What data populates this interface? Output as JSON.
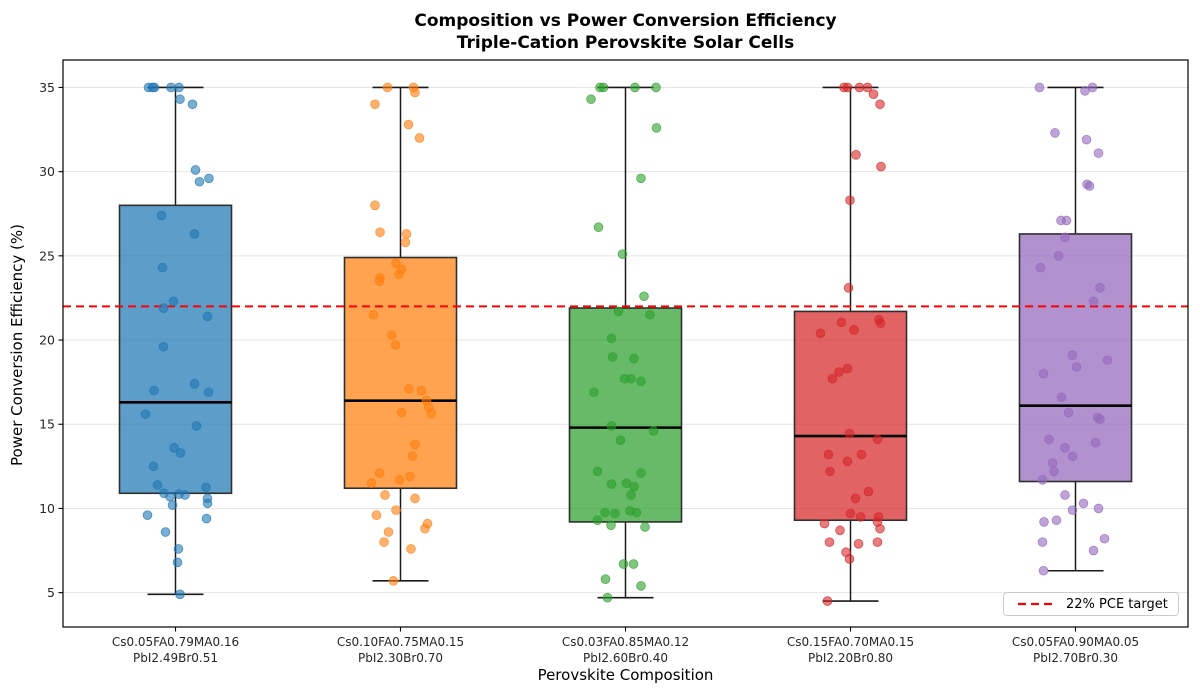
{
  "chart_data": {
    "type": "boxplot",
    "title_line1": "Composition vs Power Conversion Efficiency",
    "title_line2": "Triple-Cation Perovskite Solar Cells",
    "xlabel": "Perovskite Composition",
    "ylabel": "Power Conversion Efficiency (%)",
    "ylim": [
      2.96,
      36.63
    ],
    "yticks": [
      5,
      10,
      15,
      20,
      25,
      30,
      35
    ],
    "grid": "horizontal",
    "reference_line": {
      "value": 22,
      "color": "#ff0000",
      "style": "dashed"
    },
    "legend": {
      "position": "lower right",
      "label": "22% PCE target",
      "color": "#ff0000",
      "line_style": "dashed"
    },
    "groups": [
      {
        "label_line1": "Cs0.05FA0.79MA0.16",
        "label_line2": "PbI2.49Br0.51",
        "color": "#1f77b4",
        "stats": {
          "whislo": 4.9,
          "q1": 10.9,
          "med": 16.3,
          "q3": 28.0,
          "whishi": 35.0
        },
        "points": [
          [
            -27,
            35
          ],
          [
            -23,
            35
          ],
          [
            -21,
            35
          ],
          [
            -4.5,
            35
          ],
          [
            3.5,
            35
          ],
          [
            4.5,
            34.3
          ],
          [
            17,
            34.0
          ],
          [
            20,
            30.1
          ],
          [
            33.5,
            29.6
          ],
          [
            24,
            29.4
          ],
          [
            -14,
            27.4
          ],
          [
            19,
            26.3
          ],
          [
            -13,
            24.3
          ],
          [
            -2,
            22.3
          ],
          [
            -12,
            21.9
          ],
          [
            32,
            21.4
          ],
          [
            -12,
            19.6
          ],
          [
            19,
            17.4
          ],
          [
            33,
            16.9
          ],
          [
            -21.5,
            17.0
          ],
          [
            -30,
            15.6
          ],
          [
            21,
            14.9
          ],
          [
            -1.5,
            13.6
          ],
          [
            5,
            13.3
          ],
          [
            -22,
            12.5
          ],
          [
            -18,
            11.4
          ],
          [
            30.5,
            11.25
          ],
          [
            -11.5,
            10.9
          ],
          [
            -5.5,
            10.7
          ],
          [
            3.5,
            10.85
          ],
          [
            9.5,
            10.8
          ],
          [
            32,
            10.6
          ],
          [
            -3,
            10.2
          ],
          [
            32,
            10.3
          ],
          [
            -28,
            9.6
          ],
          [
            31,
            9.4
          ],
          [
            -10,
            8.6
          ],
          [
            3,
            7.6
          ],
          [
            2,
            6.8
          ],
          [
            4.5,
            4.9
          ]
        ]
      },
      {
        "label_line1": "Cs0.10FA0.75MA0.15",
        "label_line2": "PbI2.30Br0.70",
        "color": "#ff7f0e",
        "stats": {
          "whislo": 5.7,
          "q1": 11.2,
          "med": 16.4,
          "q3": 24.9,
          "whishi": 35.0
        },
        "points": [
          [
            -13,
            35
          ],
          [
            13,
            35
          ],
          [
            14.5,
            34.7
          ],
          [
            -25.5,
            34.0
          ],
          [
            8,
            32.8
          ],
          [
            19,
            32.0
          ],
          [
            -25.5,
            28.0
          ],
          [
            -20.5,
            26.4
          ],
          [
            6,
            26.3
          ],
          [
            5,
            25.8
          ],
          [
            -4.5,
            24.55
          ],
          [
            1,
            24.2
          ],
          [
            -20.5,
            23.7
          ],
          [
            -1.5,
            23.9
          ],
          [
            -21,
            23.5
          ],
          [
            -27,
            21.5
          ],
          [
            -9,
            20.3
          ],
          [
            -5,
            19.7
          ],
          [
            8.5,
            17.1
          ],
          [
            21,
            17.0
          ],
          [
            26,
            16.4
          ],
          [
            28,
            16.0
          ],
          [
            31,
            15.65
          ],
          [
            1,
            15.7
          ],
          [
            14.5,
            13.8
          ],
          [
            12,
            13.1
          ],
          [
            -21,
            12.1
          ],
          [
            -29,
            11.5
          ],
          [
            -1,
            11.7
          ],
          [
            9.5,
            11.9
          ],
          [
            -15.5,
            10.8
          ],
          [
            14.5,
            10.6
          ],
          [
            -4.5,
            9.9
          ],
          [
            -24,
            9.6
          ],
          [
            24.5,
            8.8
          ],
          [
            27,
            9.1
          ],
          [
            -12,
            8.6
          ],
          [
            -16.5,
            8.0
          ],
          [
            10.5,
            7.6
          ],
          [
            -7,
            5.7
          ]
        ]
      },
      {
        "label_line1": "Cs0.03FA0.85MA0.12",
        "label_line2": "PbI2.60Br0.40",
        "color": "#2ca02c",
        "stats": {
          "whislo": 4.7,
          "q1": 9.2,
          "med": 14.8,
          "q3": 21.9,
          "whishi": 35.0
        },
        "points": [
          [
            -25.5,
            35
          ],
          [
            -22,
            35
          ],
          [
            9.5,
            35
          ],
          [
            30.5,
            35
          ],
          [
            -34.5,
            34.3
          ],
          [
            31,
            32.6
          ],
          [
            15.5,
            29.6
          ],
          [
            -27,
            26.7
          ],
          [
            -3,
            25.1
          ],
          [
            18.5,
            22.6
          ],
          [
            -7,
            21.7
          ],
          [
            24.5,
            21.5
          ],
          [
            -14,
            20.1
          ],
          [
            -13,
            19.0
          ],
          [
            8.5,
            18.9
          ],
          [
            -1,
            17.7
          ],
          [
            5.5,
            17.7
          ],
          [
            15.5,
            17.55
          ],
          [
            -31.5,
            16.9
          ],
          [
            -14,
            14.9
          ],
          [
            28,
            14.6
          ],
          [
            -5,
            14.05
          ],
          [
            -28,
            12.2
          ],
          [
            15.5,
            12.1
          ],
          [
            -14,
            11.45
          ],
          [
            1,
            11.5
          ],
          [
            8.5,
            11.3
          ],
          [
            5.5,
            10.8
          ],
          [
            -20.5,
            9.75
          ],
          [
            -10.5,
            9.7
          ],
          [
            4.5,
            9.85
          ],
          [
            11,
            9.75
          ],
          [
            -28,
            9.3
          ],
          [
            -14.5,
            9.0
          ],
          [
            19.5,
            8.9
          ],
          [
            -2,
            6.7
          ],
          [
            8,
            6.7
          ],
          [
            -20,
            5.8
          ],
          [
            15.5,
            5.4
          ],
          [
            -18,
            4.7
          ]
        ]
      },
      {
        "label_line1": "Cs0.15FA0.70MA0.15",
        "label_line2": "PbI2.20Br0.80",
        "color": "#d62728",
        "stats": {
          "whislo": 4.5,
          "q1": 9.3,
          "med": 14.3,
          "q3": 21.7,
          "whishi": 35.0
        },
        "points": [
          [
            -6.5,
            35
          ],
          [
            -3,
            35
          ],
          [
            9,
            35
          ],
          [
            17,
            35
          ],
          [
            23,
            34.6
          ],
          [
            29.5,
            34.0
          ],
          [
            5.5,
            31.0
          ],
          [
            30.5,
            30.3
          ],
          [
            -0.5,
            28.3
          ],
          [
            -2,
            23.1
          ],
          [
            28.5,
            21.2
          ],
          [
            30,
            21.0
          ],
          [
            -9,
            21.05
          ],
          [
            3.5,
            20.6
          ],
          [
            -30,
            20.4
          ],
          [
            -3,
            18.3
          ],
          [
            -11.5,
            18.1
          ],
          [
            -18,
            17.7
          ],
          [
            -1,
            14.45
          ],
          [
            27,
            14.1
          ],
          [
            -22,
            13.2
          ],
          [
            11,
            13.2
          ],
          [
            -3,
            12.8
          ],
          [
            -20.5,
            12.2
          ],
          [
            18,
            11.0
          ],
          [
            5,
            10.6
          ],
          [
            0,
            9.7
          ],
          [
            10,
            9.5
          ],
          [
            28,
            9.5
          ],
          [
            -26,
            9.1
          ],
          [
            27,
            9.2
          ],
          [
            29.5,
            8.8
          ],
          [
            -10.5,
            8.7
          ],
          [
            -21,
            8.0
          ],
          [
            8,
            7.9
          ],
          [
            27,
            8.0
          ],
          [
            -4.5,
            7.4
          ],
          [
            -1,
            7.0
          ],
          [
            -23,
            4.5
          ]
        ]
      },
      {
        "label_line1": "Cs0.05FA0.90MA0.05",
        "label_line2": "PbI2.70Br0.30",
        "color": "#9467bd",
        "stats": {
          "whislo": 6.3,
          "q1": 11.6,
          "med": 16.1,
          "q3": 26.3,
          "whishi": 35.0
        },
        "points": [
          [
            -36,
            35
          ],
          [
            9.5,
            34.8
          ],
          [
            17,
            35
          ],
          [
            -20.5,
            32.3
          ],
          [
            11,
            31.9
          ],
          [
            23,
            31.1
          ],
          [
            11.5,
            29.25
          ],
          [
            14,
            29.15
          ],
          [
            -14.5,
            27.1
          ],
          [
            -9,
            27.1
          ],
          [
            -10.5,
            26.1
          ],
          [
            -17,
            25.0
          ],
          [
            -35,
            24.3
          ],
          [
            24.5,
            23.1
          ],
          [
            18,
            22.3
          ],
          [
            -3,
            19.1
          ],
          [
            32,
            18.8
          ],
          [
            1,
            18.4
          ],
          [
            -32,
            18.0
          ],
          [
            -14,
            16.6
          ],
          [
            -7,
            15.7
          ],
          [
            22,
            15.4
          ],
          [
            24.5,
            15.3
          ],
          [
            -26.5,
            14.1
          ],
          [
            20,
            13.9
          ],
          [
            -10.5,
            13.6
          ],
          [
            -3,
            13.1
          ],
          [
            -23,
            12.7
          ],
          [
            -21.5,
            12.2
          ],
          [
            -33,
            11.7
          ],
          [
            -10.5,
            10.8
          ],
          [
            8,
            10.3
          ],
          [
            -3,
            9.9
          ],
          [
            23,
            10.0
          ],
          [
            -31.5,
            9.2
          ],
          [
            -19,
            9.3
          ],
          [
            29,
            8.2
          ],
          [
            -33,
            8.0
          ],
          [
            18,
            7.5
          ],
          [
            -32,
            6.3
          ]
        ]
      }
    ],
    "style": {
      "grid_color": "#e4e4e4",
      "spine_color": "#000000",
      "tick_label_color": "#262626",
      "box_fill_opacity": 0.72,
      "box_edge_color": "#2f2f2f",
      "median_color": "#000000",
      "point_opacity": 0.6
    }
  }
}
